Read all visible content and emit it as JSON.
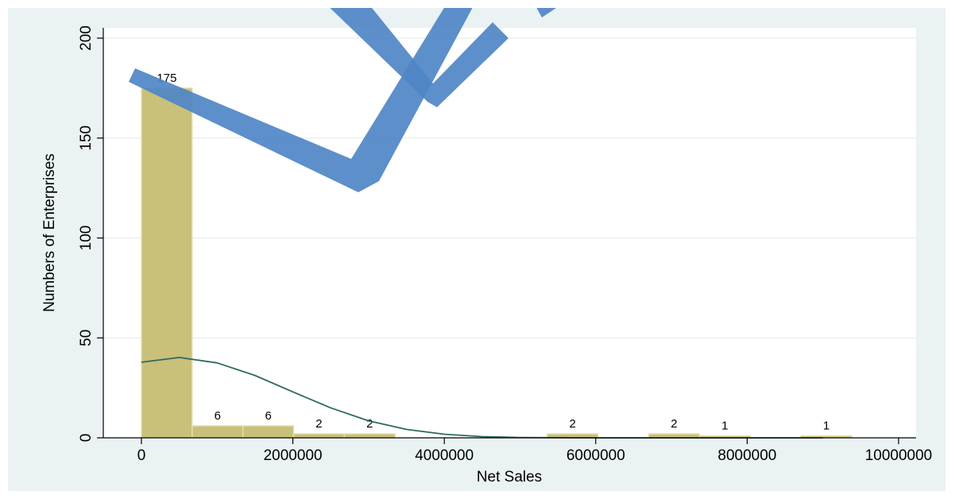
{
  "chart_data": {
    "type": "bar",
    "subtype": "histogram",
    "xlabel": "Net Sales",
    "ylabel": "Numbers of Enterprises",
    "xlim": [
      0,
      10000000
    ],
    "ylim": [
      0,
      200
    ],
    "xticks": [
      0,
      2000000,
      4000000,
      6000000,
      8000000,
      10000000
    ],
    "xtick_labels": [
      "0",
      "2000000",
      "4000000",
      "6000000",
      "8000000",
      "10000000"
    ],
    "yticks": [
      0,
      50,
      100,
      150,
      200
    ],
    "ytick_labels": [
      "0",
      "50",
      "100",
      "150",
      "200"
    ],
    "bin_width": 670000,
    "bins": [
      {
        "x_start": 0,
        "count": 175,
        "label": "175"
      },
      {
        "x_start": 670000,
        "count": 6,
        "label": "6"
      },
      {
        "x_start": 1340000,
        "count": 6,
        "label": "6"
      },
      {
        "x_start": 2010000,
        "count": 2,
        "label": "2"
      },
      {
        "x_start": 2680000,
        "count": 2,
        "label": "2"
      },
      {
        "x_start": 5360000,
        "count": 2,
        "label": "2"
      },
      {
        "x_start": 6700000,
        "count": 2,
        "label": "2"
      },
      {
        "x_start": 7370000,
        "count": 1,
        "label": "1"
      },
      {
        "x_start": 8710000,
        "count": 1,
        "label": "1"
      }
    ],
    "curve": {
      "type": "normal-density",
      "points": [
        [
          0,
          37.8
        ],
        [
          500000,
          40.2
        ],
        [
          1000000,
          37.5
        ],
        [
          1500000,
          31.2
        ],
        [
          2000000,
          23.0
        ],
        [
          2500000,
          15.0
        ],
        [
          3000000,
          8.5
        ],
        [
          3500000,
          4.2
        ],
        [
          4000000,
          1.8
        ],
        [
          4500000,
          0.6
        ],
        [
          5000000,
          0.15
        ],
        [
          6000000,
          0
        ],
        [
          7000000,
          0
        ],
        [
          8000000,
          0
        ],
        [
          9000000,
          0
        ]
      ]
    },
    "grid": true,
    "colors": {
      "background": "#eaf2f3",
      "grid": "#ffffff",
      "bar": "#c9c07a",
      "bar_edge": "#e6e0b0",
      "curve": "#2c6b60"
    }
  },
  "watermark": {
    "color": "#4f86c6"
  }
}
